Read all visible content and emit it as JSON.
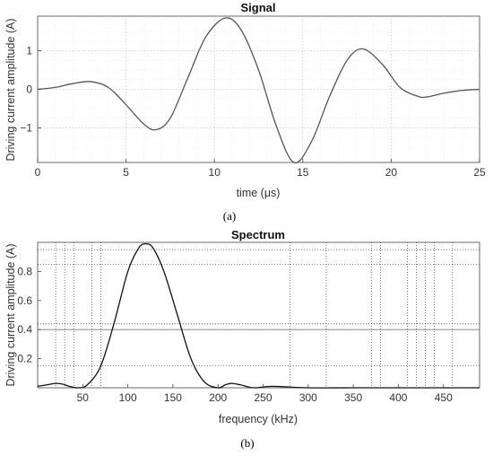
{
  "chart_data": [
    {
      "type": "line",
      "title": "Signal",
      "xlabel": "time (μs)",
      "ylabel": "Driving current amplitude (A)",
      "xlim": [
        0,
        25
      ],
      "ylim": [
        -1.9,
        1.9
      ],
      "x_ticks": [
        0,
        5,
        10,
        15,
        20,
        25
      ],
      "y_ticks": [
        -1,
        0,
        1
      ],
      "grid": "dotted",
      "caption": "(a)",
      "series": [
        {
          "x": [
            0,
            1,
            2,
            3,
            4,
            5,
            6,
            6.7,
            7.5,
            8.5,
            9.5,
            10.6,
            11.5,
            12.5,
            13.5,
            14.5,
            15.5,
            16.5,
            17.5,
            18.4,
            19.5,
            20.5,
            21.5,
            22,
            23,
            24,
            25
          ],
          "y": [
            0,
            0.05,
            0.15,
            0.2,
            0.05,
            -0.4,
            -0.9,
            -1.05,
            -0.75,
            0.3,
            1.35,
            1.85,
            1.55,
            0.5,
            -0.95,
            -1.9,
            -1.35,
            -0.2,
            0.75,
            1.05,
            0.65,
            0.05,
            -0.18,
            -0.2,
            -0.1,
            -0.03,
            0
          ]
        }
      ]
    },
    {
      "type": "line",
      "title": "Spectrum",
      "xlabel": "frequency (kHz)",
      "ylabel": "Driving current amplitude (A)",
      "xlim": [
        0,
        490
      ],
      "ylim": [
        0,
        1
      ],
      "x_ticks": [
        50,
        100,
        150,
        200,
        250,
        300,
        350,
        400,
        450
      ],
      "y_ticks": [
        0.2,
        0.4,
        0.6,
        0.8
      ],
      "grid": "dotted",
      "vlines_x": [
        20,
        30,
        40,
        60,
        70,
        280,
        320,
        370,
        380,
        410,
        420,
        430,
        440,
        460
      ],
      "hlines_y": [
        0.15,
        0.44,
        0.85,
        0.95
      ],
      "solid_line_y": 0.4,
      "caption": "(b)",
      "series": [
        {
          "x": [
            0,
            10,
            20,
            28,
            35,
            45,
            55,
            70,
            85,
            100,
            112,
            120,
            128,
            140,
            155,
            170,
            185,
            200,
            208,
            215,
            225,
            240,
            260,
            300,
            350,
            400,
            450,
            490
          ],
          "y": [
            0.01,
            0.02,
            0.03,
            0.025,
            0.01,
            0.0,
            0.02,
            0.15,
            0.45,
            0.8,
            0.96,
            0.99,
            0.96,
            0.8,
            0.5,
            0.2,
            0.04,
            0.0,
            0.02,
            0.03,
            0.02,
            0.0,
            0.01,
            0.0,
            0.0,
            0.0,
            0.0,
            0.0
          ]
        }
      ]
    }
  ]
}
